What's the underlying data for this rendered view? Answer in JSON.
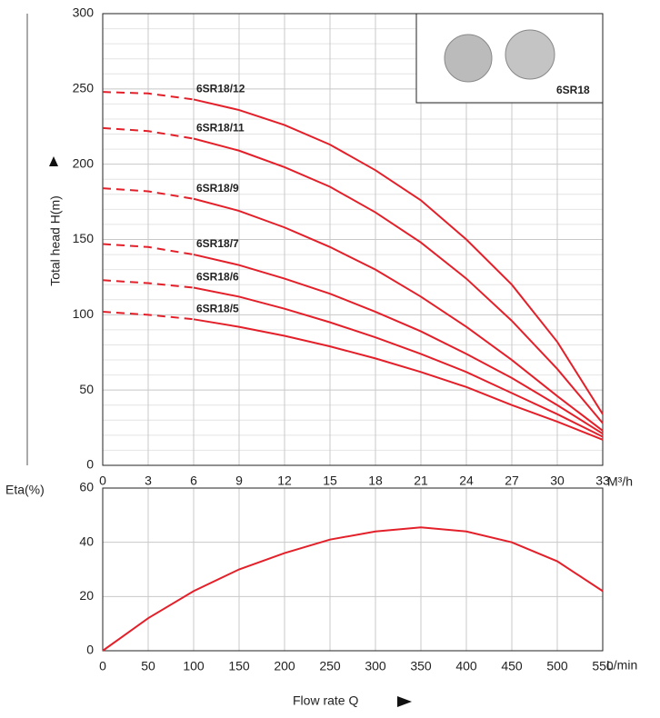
{
  "chart_data": [
    {
      "type": "line",
      "y_label": "Total head H(m)",
      "x_unit": "M³/h",
      "x": [
        0,
        3,
        6,
        9,
        12,
        15,
        18,
        21,
        24,
        27,
        30,
        33
      ],
      "xlim": [
        0,
        33
      ],
      "xticks": [
        0,
        3,
        6,
        9,
        12,
        15,
        18,
        21,
        24,
        27,
        30,
        33
      ],
      "ylim": [
        0,
        300
      ],
      "yticks": [
        0,
        50,
        100,
        150,
        200,
        250,
        300
      ],
      "minor_yticks": [
        10,
        20,
        30,
        40,
        60,
        70,
        80,
        90,
        110,
        120,
        130,
        140,
        160,
        170,
        180,
        190,
        210,
        220,
        230,
        240,
        260,
        270,
        280,
        290
      ],
      "grid": true,
      "dashed_below_x": 6,
      "inset_label": "6SR18",
      "series": [
        {
          "name": "6SR18/12",
          "color": "#e3202a",
          "values": [
            248,
            247,
            243,
            236,
            226,
            213,
            196,
            176,
            150,
            120,
            82,
            34
          ]
        },
        {
          "name": "6SR18/11",
          "color": "#e3202a",
          "values": [
            224,
            222,
            217,
            209,
            198,
            185,
            168,
            148,
            124,
            96,
            64,
            28
          ]
        },
        {
          "name": "6SR18/9",
          "color": "#e3202a",
          "values": [
            184,
            182,
            177,
            169,
            158,
            145,
            130,
            112,
            92,
            70,
            46,
            23
          ]
        },
        {
          "name": "6SR18/7",
          "color": "#e3202a",
          "values": [
            147,
            145,
            140,
            133,
            124,
            114,
            102,
            89,
            74,
            58,
            40,
            21
          ]
        },
        {
          "name": "6SR18/6",
          "color": "#e3202a",
          "values": [
            123,
            121,
            118,
            112,
            104,
            95,
            85,
            74,
            62,
            48,
            34,
            19
          ]
        },
        {
          "name": "6SR18/5",
          "color": "#e3202a",
          "values": [
            102,
            100,
            97,
            92,
            86,
            79,
            71,
            62,
            52,
            40,
            29,
            17
          ]
        }
      ]
    },
    {
      "type": "line",
      "y_label": "Eta(%)",
      "x_label": "Flow rate Q",
      "x_unit": "L/min",
      "x": [
        0,
        50,
        100,
        150,
        200,
        250,
        300,
        350,
        400,
        450,
        500,
        550
      ],
      "xlim": [
        0,
        550
      ],
      "xticks": [
        0,
        50,
        100,
        150,
        200,
        250,
        300,
        350,
        400,
        450,
        500,
        550
      ],
      "ylim": [
        0,
        60
      ],
      "yticks": [
        0,
        20,
        40,
        60
      ],
      "grid": true,
      "series": [
        {
          "name": "Eta",
          "color": "#e3202a",
          "values": [
            0,
            12,
            22,
            30,
            36,
            41,
            44,
            45.5,
            44,
            40,
            33,
            22
          ]
        }
      ]
    }
  ]
}
